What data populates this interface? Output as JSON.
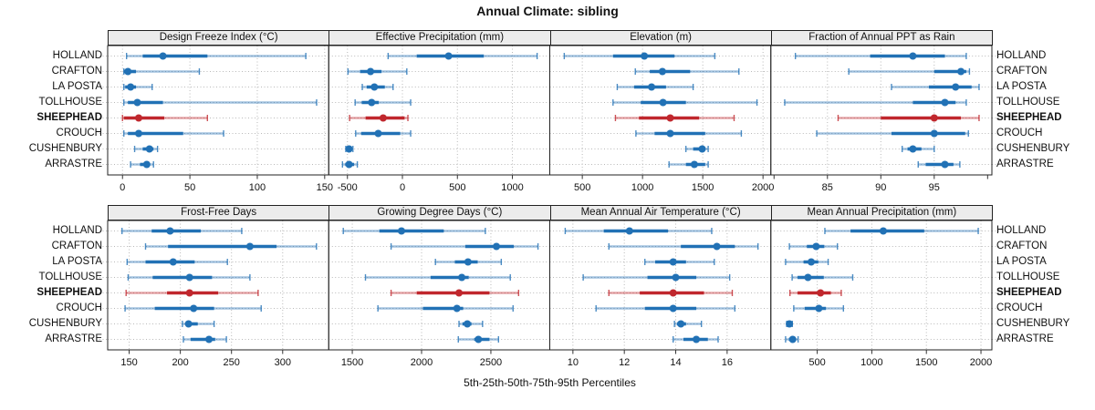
{
  "title": "Annual Climate: sibling",
  "caption": "5th-25th-50th-75th-95th Percentiles",
  "sites": [
    "HOLLAND",
    "CRAFTON",
    "LA POSTA",
    "TOLLHOUSE",
    "SHEEPHEAD",
    "CROUCH",
    "CUSHENBURY",
    "ARRASTRE"
  ],
  "highlight_site": "SHEEPHEAD",
  "percentile_labels": [
    "5th",
    "25th",
    "50th",
    "75th",
    "95th"
  ],
  "colors": {
    "series_blue": "#2171b5",
    "highlight_red": "#c0272d",
    "strip_bg": "#ececec",
    "grid": "#b9b9b9",
    "border": "#222222",
    "text": "#111111"
  },
  "chart_data": [
    {
      "type": "dotplot-percentiles",
      "title": "Design Freeze Index (°C)",
      "row": 0,
      "col": 0,
      "xlim": [
        -11,
        153
      ],
      "ticks": [
        0,
        50,
        100,
        150
      ],
      "minor_ticks": [],
      "series": [
        {
          "name": "HOLLAND",
          "values": [
            3,
            15,
            30,
            63,
            136
          ]
        },
        {
          "name": "CRAFTON",
          "values": [
            1,
            1,
            4,
            10,
            57
          ]
        },
        {
          "name": "LA POSTA",
          "values": [
            1,
            2,
            6,
            10,
            22
          ]
        },
        {
          "name": "TOLLHOUSE",
          "values": [
            1,
            4,
            11,
            30,
            144
          ]
        },
        {
          "name": "SHEEPHEAD",
          "values": [
            0,
            1,
            12,
            31,
            63
          ]
        },
        {
          "name": "CROUCH",
          "values": [
            1,
            4,
            12,
            45,
            75
          ]
        },
        {
          "name": "CUSHENBURY",
          "values": [
            9,
            15,
            20,
            23,
            26
          ]
        },
        {
          "name": "ARRASTRE",
          "values": [
            6,
            13,
            18,
            20,
            23
          ]
        }
      ]
    },
    {
      "type": "dotplot-percentiles",
      "title": "Effective Precipitation (mm)",
      "row": 0,
      "col": 1,
      "xlim": [
        -670,
        1340
      ],
      "ticks": [
        -500,
        0,
        500,
        1000
      ],
      "minor_ticks": [],
      "series": [
        {
          "name": "HOLLAND",
          "values": [
            -130,
            130,
            420,
            740,
            1225
          ]
        },
        {
          "name": "CRAFTON",
          "values": [
            -495,
            -385,
            -290,
            -190,
            40
          ]
        },
        {
          "name": "LA POSTA",
          "values": [
            -365,
            -325,
            -255,
            -160,
            -85
          ]
        },
        {
          "name": "TOLLHOUSE",
          "values": [
            -430,
            -370,
            -280,
            -215,
            75
          ]
        },
        {
          "name": "SHEEPHEAD",
          "values": [
            -480,
            -335,
            -175,
            20,
            50
          ]
        },
        {
          "name": "CROUCH",
          "values": [
            -425,
            -375,
            -220,
            -20,
            75
          ]
        },
        {
          "name": "CUSHENBURY",
          "values": [
            -515,
            -495,
            -485,
            -470,
            -450
          ]
        },
        {
          "name": "ARRASTRE",
          "values": [
            -545,
            -520,
            -485,
            -440,
            -410
          ]
        }
      ]
    },
    {
      "type": "dotplot-percentiles",
      "title": "Elevation (m)",
      "row": 0,
      "col": 2,
      "xlim": [
        230,
        2065
      ],
      "ticks": [
        500,
        1000,
        1500,
        2000
      ],
      "minor_ticks": [],
      "series": [
        {
          "name": "HOLLAND",
          "values": [
            350,
            755,
            1015,
            1265,
            1600
          ]
        },
        {
          "name": "CRAFTON",
          "values": [
            940,
            1060,
            1165,
            1395,
            1800
          ]
        },
        {
          "name": "LA POSTA",
          "values": [
            790,
            930,
            1075,
            1195,
            1420
          ]
        },
        {
          "name": "TOLLHOUSE",
          "values": [
            755,
            985,
            1170,
            1360,
            1950
          ]
        },
        {
          "name": "SHEEPHEAD",
          "values": [
            775,
            970,
            1230,
            1470,
            1760
          ]
        },
        {
          "name": "CROUCH",
          "values": [
            945,
            1100,
            1230,
            1520,
            1820
          ]
        },
        {
          "name": "CUSHENBURY",
          "values": [
            1360,
            1420,
            1495,
            1520,
            1545
          ]
        },
        {
          "name": "ARRASTRE",
          "values": [
            1220,
            1360,
            1430,
            1520,
            1545
          ]
        }
      ]
    },
    {
      "type": "dotplot-percentiles",
      "title": "Fraction of Annual PPT as Rain",
      "row": 0,
      "col": 3,
      "xlim": [
        79.7,
        100.4
      ],
      "ticks": [
        85,
        90,
        95
      ],
      "minor_ticks": [
        80,
        100
      ],
      "series": [
        {
          "name": "HOLLAND",
          "values": [
            82,
            89,
            93,
            96,
            98
          ]
        },
        {
          "name": "CRAFTON",
          "values": [
            87,
            95,
            97.5,
            98,
            98.3
          ]
        },
        {
          "name": "LA POSTA",
          "values": [
            91,
            94.5,
            97,
            98.5,
            99.2
          ]
        },
        {
          "name": "TOLLHOUSE",
          "values": [
            81,
            93,
            96,
            97,
            98
          ]
        },
        {
          "name": "SHEEPHEAD",
          "values": [
            86,
            90,
            95,
            97.5,
            99.2
          ]
        },
        {
          "name": "CROUCH",
          "values": [
            84,
            91,
            95,
            97.9,
            98.2
          ]
        },
        {
          "name": "CUSHENBURY",
          "values": [
            92,
            92.5,
            93,
            93.8,
            95
          ]
        },
        {
          "name": "ARRASTRE",
          "values": [
            93.5,
            94.2,
            96,
            96.8,
            97.4
          ]
        }
      ]
    },
    {
      "type": "dotplot-percentiles",
      "title": "Frost-Free Days",
      "row": 1,
      "col": 0,
      "xlim": [
        129,
        345
      ],
      "ticks": [
        150,
        200,
        250,
        300
      ],
      "minor_ticks": [],
      "series": [
        {
          "name": "HOLLAND",
          "values": [
            143,
            172,
            190,
            220,
            260
          ]
        },
        {
          "name": "CRAFTON",
          "values": [
            166,
            188,
            268,
            294,
            333
          ]
        },
        {
          "name": "LA POSTA",
          "values": [
            148,
            166,
            193,
            214,
            246
          ]
        },
        {
          "name": "TOLLHOUSE",
          "values": [
            149,
            173,
            209,
            231,
            268
          ]
        },
        {
          "name": "SHEEPHEAD",
          "values": [
            147,
            187,
            209,
            237,
            276
          ]
        },
        {
          "name": "CROUCH",
          "values": [
            146,
            175,
            213,
            233,
            279
          ]
        },
        {
          "name": "CUSHENBURY",
          "values": [
            202,
            205,
            208,
            217,
            233
          ]
        },
        {
          "name": "ARRASTRE",
          "values": [
            203,
            210,
            228,
            234,
            245
          ]
        }
      ]
    },
    {
      "type": "dotplot-percentiles",
      "title": "Growing Degree Days (°C)",
      "row": 1,
      "col": 1,
      "xlim": [
        1330,
        2925
      ],
      "ticks": [
        1500,
        2000,
        2500
      ],
      "minor_ticks": [],
      "series": [
        {
          "name": "HOLLAND",
          "values": [
            1435,
            1695,
            1855,
            2160,
            2460
          ]
        },
        {
          "name": "CRAFTON",
          "values": [
            1780,
            2315,
            2540,
            2665,
            2840
          ]
        },
        {
          "name": "LA POSTA",
          "values": [
            2100,
            2240,
            2335,
            2405,
            2575
          ]
        },
        {
          "name": "TOLLHOUSE",
          "values": [
            1595,
            2065,
            2290,
            2340,
            2640
          ]
        },
        {
          "name": "SHEEPHEAD",
          "values": [
            1780,
            1965,
            2270,
            2490,
            2700
          ]
        },
        {
          "name": "CROUCH",
          "values": [
            1685,
            2010,
            2255,
            2300,
            2660
          ]
        },
        {
          "name": "CUSHENBURY",
          "values": [
            2270,
            2295,
            2330,
            2360,
            2440
          ]
        },
        {
          "name": "ARRASTRE",
          "values": [
            2265,
            2380,
            2410,
            2490,
            2555
          ]
        }
      ]
    },
    {
      "type": "dotplot-percentiles",
      "title": "Mean Annual Air Temperature (°C)",
      "row": 1,
      "col": 2,
      "xlim": [
        9.1,
        17.7
      ],
      "ticks": [
        10,
        12,
        14,
        16
      ],
      "minor_ticks": [],
      "series": [
        {
          "name": "HOLLAND",
          "values": [
            9.7,
            11.2,
            12.2,
            13.7,
            15.4
          ]
        },
        {
          "name": "CRAFTON",
          "values": [
            11.4,
            14.2,
            15.6,
            16.3,
            17.2
          ]
        },
        {
          "name": "LA POSTA",
          "values": [
            12.8,
            13.2,
            13.9,
            14.4,
            15.5
          ]
        },
        {
          "name": "TOLLHOUSE",
          "values": [
            10.4,
            12.9,
            14,
            14.8,
            16.1
          ]
        },
        {
          "name": "SHEEPHEAD",
          "values": [
            11.4,
            12.6,
            13.9,
            15.1,
            16.2
          ]
        },
        {
          "name": "CROUCH",
          "values": [
            10.9,
            12.8,
            13.9,
            14.8,
            16.3
          ]
        },
        {
          "name": "CUSHENBURY",
          "values": [
            13.95,
            14.05,
            14.2,
            14.4,
            15
          ]
        },
        {
          "name": "ARRASTRE",
          "values": [
            13.9,
            14.3,
            14.8,
            15.25,
            15.65
          ]
        }
      ]
    },
    {
      "type": "dotplot-percentiles",
      "title": "Mean Annual Precipitation (mm)",
      "row": 1,
      "col": 3,
      "xlim": [
        75,
        2100
      ],
      "ticks": [
        500,
        1000,
        1500,
        2000
      ],
      "minor_ticks": [],
      "series": [
        {
          "name": "HOLLAND",
          "values": [
            570,
            805,
            1105,
            1480,
            1975
          ]
        },
        {
          "name": "CRAFTON",
          "values": [
            245,
            405,
            490,
            565,
            685
          ]
        },
        {
          "name": "LA POSTA",
          "values": [
            210,
            375,
            445,
            510,
            600
          ]
        },
        {
          "name": "TOLLHOUSE",
          "values": [
            270,
            320,
            415,
            560,
            825
          ]
        },
        {
          "name": "SHEEPHEAD",
          "values": [
            250,
            320,
            530,
            625,
            720
          ]
        },
        {
          "name": "CROUCH",
          "values": [
            285,
            385,
            515,
            580,
            740
          ]
        },
        {
          "name": "CUSHENBURY",
          "values": [
            220,
            235,
            245,
            257,
            272
          ]
        },
        {
          "name": "ARRASTRE",
          "values": [
            210,
            240,
            275,
            305,
            325
          ]
        }
      ]
    }
  ]
}
